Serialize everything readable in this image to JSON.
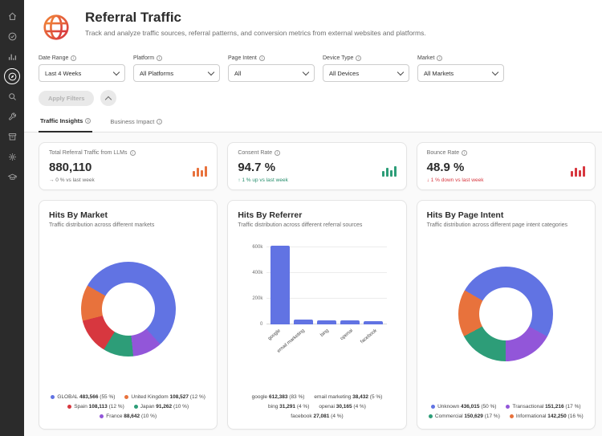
{
  "icons": {
    "info": "i"
  },
  "sidebar": {
    "items": [
      {
        "icon": "home-icon"
      },
      {
        "icon": "check-circle-icon"
      },
      {
        "icon": "bar-chart-icon"
      },
      {
        "icon": "compass-icon",
        "active": true
      },
      {
        "icon": "search-icon"
      },
      {
        "icon": "wrench-icon"
      },
      {
        "icon": "archive-icon"
      },
      {
        "icon": "gear-icon"
      },
      {
        "icon": "graduation-cap-icon"
      }
    ]
  },
  "header": {
    "title": "Referral Traffic",
    "subtitle": "Track and analyze traffic sources, referral patterns, and conversion metrics from external websites and platforms."
  },
  "filters": {
    "fields": [
      {
        "label": "Date Range",
        "value": "Last 4 Weeks"
      },
      {
        "label": "Platform",
        "value": "All Platforms"
      },
      {
        "label": "Page Intent",
        "value": "All"
      },
      {
        "label": "Device Type",
        "value": "All Devices"
      },
      {
        "label": "Market",
        "value": "All Markets"
      }
    ],
    "apply_label": "Apply Filters"
  },
  "tabs": [
    {
      "label": "Traffic Insights",
      "active": true
    },
    {
      "label": "Business Impact",
      "active": false
    }
  ],
  "kpis": [
    {
      "title": "Total Referral Traffic from LLMs",
      "value": "880,110",
      "delta": "→ 0 % vs last week",
      "trend": "neutral",
      "icon_color": "#e8723c"
    },
    {
      "title": "Consent Rate",
      "value": "94.7 %",
      "delta": "↑ 1 % up vs last week",
      "trend": "up",
      "icon_color": "#2d9d78"
    },
    {
      "title": "Bounce Rate",
      "value": "48.9 %",
      "delta": "↓ 1 % down vs last week",
      "trend": "down",
      "icon_color": "#d7373f"
    }
  ],
  "chart_data": [
    {
      "type": "pie",
      "title": "Hits By Market",
      "subtitle": "Traffic distribution across different markets",
      "labels": [
        "GLOBAL",
        "United Kingdom",
        "Spain",
        "Japan",
        "France"
      ],
      "values": [
        483566,
        108527,
        108113,
        91262,
        88642
      ],
      "display_values": [
        "483,566",
        "108,527",
        "108,113",
        "91,262",
        "88,642"
      ],
      "percents": [
        "55 %",
        "12 %",
        "12 %",
        "10 %",
        "10 %"
      ],
      "colors": [
        "#6173e3",
        "#e8723c",
        "#d7373f",
        "#2d9d78",
        "#9256d9"
      ],
      "start_deg": -60,
      "slice_order": [
        0,
        4,
        3,
        2,
        1
      ],
      "legend_position": "bottom"
    },
    {
      "type": "bar",
      "title": "Hits By Referrer",
      "subtitle": "Traffic distribution across different referral sources",
      "categories": [
        "google",
        "email marketing",
        "bing",
        "openai",
        "facebook"
      ],
      "values": [
        612383,
        38432,
        31291,
        30165,
        27081
      ],
      "display_values": [
        "612,383",
        "38,432",
        "31,291",
        "30,165",
        "27,081"
      ],
      "percents": [
        "83 %",
        "5 %",
        "4 %",
        "4 %",
        "4 %"
      ],
      "bar_color": "#6173e3",
      "ylim": [
        0,
        650000
      ],
      "yticks": [
        "0",
        "200k",
        "400k",
        "600k"
      ],
      "ytick_values": [
        0,
        200000,
        400000,
        600000
      ],
      "grid": true,
      "legend_position": "bottom"
    },
    {
      "type": "pie",
      "title": "Hits By Page Intent",
      "subtitle": "Traffic distribution across different page intent categories",
      "labels": [
        "Unknown",
        "Transactional",
        "Commercial",
        "Informational"
      ],
      "values": [
        436015,
        151216,
        150629,
        142250
      ],
      "display_values": [
        "436,015",
        "151,216",
        "150,629",
        "142,250"
      ],
      "percents": [
        "50 %",
        "17 %",
        "17 %",
        "16 %"
      ],
      "colors": [
        "#6173e3",
        "#9256d9",
        "#2d9d78",
        "#e8723c"
      ],
      "start_deg": -60,
      "legend_position": "bottom"
    }
  ]
}
